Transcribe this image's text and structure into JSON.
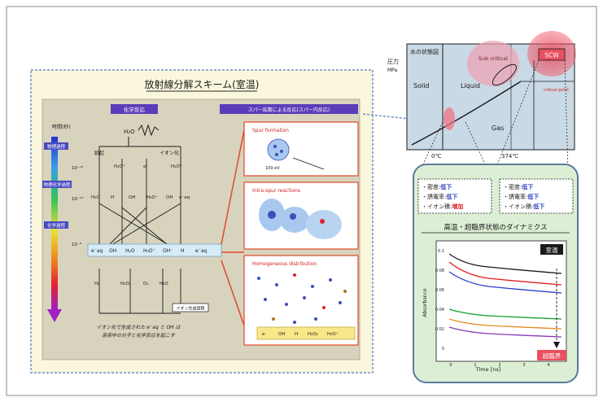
{
  "left_panel": {
    "title": "放射線分解スキーム(室温)",
    "box_left_label": "化学反応",
    "box_right_label": "スパー拡散による反応(スパー内反応)",
    "time_header": "時間(秒)",
    "time_stage1": "物理過程",
    "time_stage2": "物理化学過程",
    "time_stage3": "化学過程",
    "time_tick1": "10⁻¹⁵",
    "time_tick2": "10⁻¹²",
    "time_tick3": "10⁻⁶",
    "h2o_label": "H₂O",
    "excite_label": "励起",
    "ionize_label": "イオン化",
    "species_top": [
      "H₂O⁺",
      "e⁻",
      "H₂O*"
    ],
    "species_mid": [
      "H₂O",
      "H",
      "OH",
      "H₃O⁺",
      "OH",
      "e⁻aq"
    ],
    "product_bar": [
      "e⁻aq",
      "OH",
      "H₂O",
      "H₃O⁺",
      "OH⁻",
      "H",
      "e⁻aq"
    ],
    "species_bottom": [
      "H₂",
      "H₂O₂",
      "O₂",
      "H₂O"
    ],
    "bottom_tag": "イオン生成過程",
    "note_line1": "イオン化で生成された e⁻aq と OH は",
    "note_line2": "溶液中の分子と化学反応を起こす",
    "spur_track_label": "Spur formation",
    "spur_arrow_label": "100 eV",
    "spur_track2_label": "Intra-spur reactions",
    "spur_track3_label": "Homogeneous distribution",
    "spur_legend": [
      "e⁻",
      "OH",
      "H",
      "H₂O₂",
      "H₃O⁺"
    ]
  },
  "phase_diagram": {
    "title": "水の状態図",
    "y_label": "圧力",
    "y_unit": "MPa",
    "solid_label": "Solid",
    "liquid_label": "Liquid",
    "gas_label": "Gas",
    "subcritical_label": "Sub critical",
    "scw_label": "SCW",
    "critical_point_label": "critical point",
    "x_tick1": "0℃",
    "x_tick2": "374℃"
  },
  "property_boxes": [
    {
      "lines": [
        {
          "prefix": "・密度:",
          "value": "低下"
        },
        {
          "prefix": "・誘電率:",
          "value": "低下"
        },
        {
          "prefix": "・イオン積:",
          "value": "増加"
        }
      ]
    },
    {
      "lines": [
        {
          "prefix": "・密度:",
          "value": "低下"
        },
        {
          "prefix": "・誘電率:",
          "value": "低下"
        },
        {
          "prefix": "・イオン積:",
          "value": "低下"
        }
      ]
    }
  ],
  "dynamics": {
    "title": "高温・超臨界状態のダイナミクス",
    "y_axis_label": "Absorbance",
    "x_axis_label": "Time [ns]",
    "room_temp_tag": "室温",
    "supercritical_tag": "超臨界",
    "y_ticks": [
      "0.1",
      "0.08",
      "0.06",
      "0.04",
      "0.02",
      "0"
    ],
    "x_ticks": [
      "0",
      "1",
      "2",
      "3",
      "4"
    ]
  },
  "colors": {
    "frame": "#8a8a8a",
    "left_bg": "#fbf7dc",
    "left_border": "#6b90c8",
    "inner_bg": "#d8d3bd",
    "spur_border": "#e04a2a",
    "accent_red": "#e21b1b",
    "accent_blue": "#3b4fb8",
    "purple_label": "#5a3db8",
    "phase_bg": "#c9d9e6",
    "plot_bg": "#ffffff",
    "title_underline": "#2a2a2a"
  }
}
